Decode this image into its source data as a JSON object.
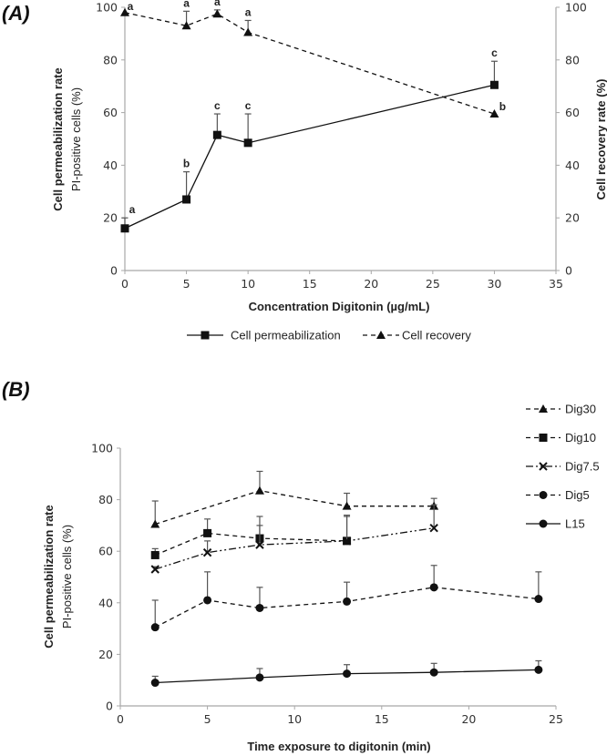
{
  "chart_data": [
    {
      "panel_label": "(A)",
      "type": "line",
      "xlabel": "Concentration Digitonin (µg/mL)",
      "ylabel": "Cell permeabilization rate",
      "ylabel_sub": "PI-positive cells (%)",
      "y2label": "Cell recovery rate (%)",
      "xlim": [
        0,
        35
      ],
      "ylim": [
        0,
        100
      ],
      "y2lim": [
        0,
        100
      ],
      "xticks": [
        "0",
        "5",
        "10",
        "15",
        "20",
        "25",
        "30",
        "35"
      ],
      "yticks": [
        "0",
        "20",
        "40",
        "60",
        "80",
        "100"
      ],
      "y2ticks": [
        "0",
        "20",
        "40",
        "60",
        "80",
        "100"
      ],
      "grid": false,
      "legend_position": "bottom",
      "series": [
        {
          "name": "Cell permeabilization",
          "marker": "square",
          "line": "solid",
          "axis": "left",
          "x": [
            0,
            5,
            7.5,
            10,
            30
          ],
          "values": [
            16,
            27,
            51.5,
            48.5,
            70.5
          ],
          "error_upper": [
            20,
            37.5,
            59.5,
            59.5,
            79.5
          ],
          "sig_labels": [
            "a",
            "b",
            "c",
            "c",
            "c"
          ]
        },
        {
          "name": "Cell recovery",
          "marker": "triangle",
          "line": "dashed",
          "axis": "right",
          "x": [
            0,
            5,
            7.5,
            10,
            30
          ],
          "values": [
            98,
            93,
            97.5,
            90.5,
            59.5
          ],
          "error_upper": [
            98,
            98.5,
            99,
            95,
            59.5
          ],
          "sig_labels": [
            "a",
            "a",
            "a",
            "a",
            "b"
          ]
        }
      ]
    },
    {
      "panel_label": "(B)",
      "type": "line",
      "xlabel": "Time exposure to digitonin (min)",
      "ylabel": "Cell permeabilization rate",
      "ylabel_sub": "PI-positive cells (%)",
      "xlim": [
        0,
        25
      ],
      "ylim": [
        0,
        100
      ],
      "xticks": [
        "0",
        "5",
        "10",
        "15",
        "20",
        "25"
      ],
      "yticks": [
        "0",
        "20",
        "40",
        "60",
        "80",
        "100"
      ],
      "grid": false,
      "legend_position": "right",
      "series": [
        {
          "name": "Dig30",
          "marker": "triangle",
          "line": "dashed",
          "x": [
            2,
            8,
            13,
            18
          ],
          "values": [
            70.5,
            83.5,
            77.5,
            77.5
          ],
          "error_upper": [
            79.5,
            91,
            82.5,
            80.5
          ]
        },
        {
          "name": "Dig10",
          "marker": "square",
          "line": "dashed",
          "x": [
            2,
            5,
            8,
            13
          ],
          "values": [
            58.5,
            67,
            65,
            64
          ],
          "error_upper": [
            61,
            72.5,
            73.5,
            74
          ]
        },
        {
          "name": "Dig7.5",
          "marker": "x",
          "line": "dashdot",
          "x": [
            2,
            5,
            8,
            13,
            18
          ],
          "values": [
            53,
            59.5,
            62.5,
            64,
            69
          ],
          "error_upper": [
            54,
            64,
            70,
            73.5,
            78
          ]
        },
        {
          "name": "Dig5",
          "marker": "circle",
          "line": "dashed",
          "x": [
            2,
            5,
            8,
            13,
            18,
            24
          ],
          "values": [
            30.5,
            41,
            38,
            40.5,
            46,
            41.5
          ],
          "error_upper": [
            41,
            52,
            46,
            48,
            54.5,
            52
          ]
        },
        {
          "name": "L15",
          "marker": "circle",
          "line": "solid",
          "x": [
            2,
            8,
            13,
            18,
            24
          ],
          "values": [
            9,
            11,
            12.5,
            13,
            14
          ],
          "error_upper": [
            11.5,
            14.5,
            16,
            16.5,
            17.5
          ]
        }
      ]
    }
  ]
}
